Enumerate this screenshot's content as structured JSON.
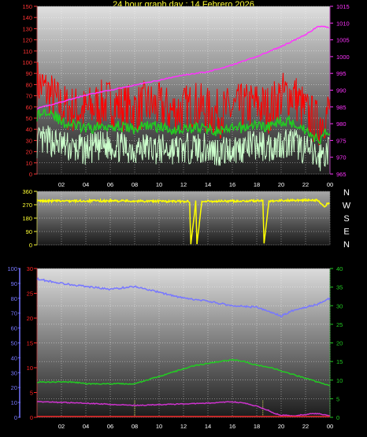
{
  "title": "24 hour graph day : 14 Febrero 2026",
  "colors": {
    "background": "#000000",
    "plot_bg_top": "#d9d9d9",
    "plot_bg_bottom": "#222222",
    "grid": "#ffffff",
    "wind_speed": "#ff0000",
    "wind_avg": "#22cc22",
    "wind_light": "#ccffcc",
    "pressure": "#ff33ff",
    "direction": "#ffff00",
    "humidity": "#7777ff",
    "temperature": "#ff2222",
    "dewpoint": "#cc33cc",
    "solar": "#22cc22",
    "axis_yellow": "#ffff33"
  },
  "x_ticks": [
    "02",
    "04",
    "06",
    "08",
    "10",
    "12",
    "14",
    "16",
    "18",
    "20",
    "22",
    "00"
  ],
  "compass": [
    "N",
    "W",
    "S",
    "E",
    "N"
  ],
  "chart_data": [
    {
      "type": "line",
      "panel": "wind_pressure",
      "x_range": [
        0,
        24
      ],
      "left_axis": {
        "ylim": [
          0,
          150
        ],
        "ticks": [
          0,
          10,
          20,
          30,
          40,
          50,
          60,
          70,
          80,
          90,
          100,
          110,
          120,
          130,
          140,
          150
        ]
      },
      "right_axis": {
        "ylim": [
          965,
          1015
        ],
        "ticks": [
          965,
          970,
          975,
          980,
          985,
          990,
          995,
          1000,
          1005,
          1010,
          1015
        ]
      },
      "series": [
        {
          "axis": "left",
          "x": [
            0,
            1,
            2,
            3,
            4,
            5,
            6,
            7,
            8,
            9,
            10,
            11,
            12,
            13,
            14,
            15,
            16,
            17,
            18,
            19,
            20,
            21,
            22,
            23,
            24
          ],
          "values": [
            82,
            72,
            60,
            58,
            56,
            62,
            64,
            60,
            58,
            62,
            60,
            56,
            58,
            62,
            56,
            54,
            58,
            60,
            62,
            58,
            70,
            72,
            55,
            45,
            58
          ]
        },
        {
          "axis": "left",
          "x": [
            0,
            1,
            2,
            3,
            4,
            5,
            6,
            7,
            8,
            9,
            10,
            11,
            12,
            13,
            14,
            15,
            16,
            17,
            18,
            19,
            20,
            21,
            22,
            23,
            24
          ],
          "values": [
            52,
            58,
            46,
            44,
            40,
            42,
            44,
            42,
            40,
            44,
            42,
            40,
            40,
            42,
            40,
            38,
            40,
            42,
            44,
            42,
            48,
            46,
            40,
            30,
            40
          ]
        },
        {
          "axis": "left",
          "x": [
            0,
            1,
            2,
            3,
            4,
            5,
            6,
            7,
            8,
            9,
            10,
            11,
            12,
            13,
            14,
            15,
            16,
            17,
            18,
            19,
            20,
            21,
            22,
            23,
            24
          ],
          "values": [
            28,
            30,
            26,
            22,
            22,
            24,
            26,
            24,
            22,
            24,
            22,
            22,
            22,
            24,
            22,
            20,
            22,
            24,
            26,
            24,
            28,
            28,
            22,
            14,
            22
          ]
        },
        {
          "axis": "right",
          "x": [
            0,
            2,
            4,
            6,
            8,
            10,
            12,
            14,
            16,
            18,
            20,
            22,
            23,
            23.5,
            24
          ],
          "values": [
            984.5,
            986.5,
            988.5,
            990,
            991.5,
            993,
            994.5,
            995.5,
            997.5,
            1000,
            1003,
            1006.5,
            1009,
            1009,
            1008.5
          ]
        }
      ]
    },
    {
      "type": "line",
      "panel": "wind_direction",
      "x_range": [
        0,
        24
      ],
      "ylim": [
        0,
        360
      ],
      "ticks": [
        0,
        90,
        180,
        270,
        360
      ],
      "series": [
        {
          "x": [
            0,
            3,
            6,
            9,
            12,
            12.5,
            12.6,
            13,
            13.1,
            13.5,
            15,
            18,
            18.5,
            18.6,
            19,
            21,
            23,
            23.5,
            24
          ],
          "values": [
            295,
            295,
            296,
            294,
            292,
            292,
            5,
            292,
            5,
            292,
            294,
            296,
            296,
            10,
            296,
            300,
            300,
            255,
            290
          ]
        }
      ]
    },
    {
      "type": "line",
      "panel": "temperature_humidity",
      "x_range": [
        0,
        24
      ],
      "left_axis_humidity": {
        "ylim": [
          0,
          100
        ],
        "ticks": [
          0,
          10,
          20,
          30,
          40,
          50,
          60,
          70,
          80,
          90,
          100
        ]
      },
      "left_axis_temp": {
        "ylim": [
          0,
          30
        ],
        "ticks": [
          0,
          5,
          10,
          15,
          20,
          25,
          30
        ]
      },
      "right_axis": {
        "ylim": [
          0,
          40
        ],
        "ticks": [
          0,
          5,
          10,
          15,
          20,
          25,
          30,
          35,
          40
        ]
      },
      "series": [
        {
          "axis": "humidity",
          "x": [
            0,
            2,
            4,
            6,
            8,
            10,
            12,
            14,
            16,
            18,
            20,
            21,
            22,
            23,
            24
          ],
          "values": [
            93,
            90,
            88,
            86,
            88,
            84,
            80,
            78,
            75,
            74,
            68,
            72,
            74,
            76,
            80
          ]
        },
        {
          "axis": "right",
          "x": [
            0,
            1,
            2,
            3,
            4,
            5,
            6,
            7,
            8,
            9,
            10,
            11,
            12,
            13,
            14,
            15,
            16,
            17,
            18,
            19,
            20,
            21,
            22,
            23,
            24
          ],
          "values": [
            9.5,
            9.5,
            9.5,
            9.5,
            9.0,
            9.0,
            9.0,
            9.0,
            9.0,
            10.0,
            11.0,
            12.0,
            13.0,
            14.0,
            14.5,
            15.0,
            15.5,
            15.0,
            14.0,
            13.5,
            12.5,
            11.5,
            10.5,
            9.5,
            8.5
          ]
        },
        {
          "axis": "right",
          "x": [
            0,
            2,
            4,
            6,
            8,
            10,
            12,
            14,
            16,
            17,
            18,
            19,
            19.5,
            20,
            21,
            22,
            23,
            24
          ],
          "values": [
            4.2,
            4.0,
            3.8,
            3.5,
            3.2,
            3.4,
            3.6,
            3.8,
            4.2,
            3.8,
            3.0,
            1.8,
            1.0,
            0.6,
            0.4,
            0.8,
            1.0,
            0.4
          ]
        },
        {
          "axis": "right",
          "x": [
            0,
            24
          ],
          "values": [
            0,
            0
          ]
        }
      ]
    }
  ]
}
